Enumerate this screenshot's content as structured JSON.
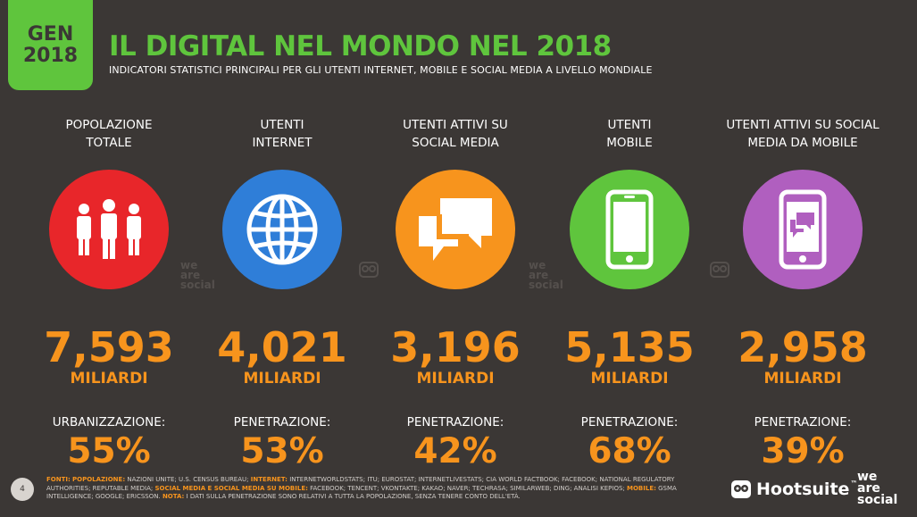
{
  "badge": {
    "line1": "GEN",
    "line2": "2018"
  },
  "header": {
    "title": "IL DIGITAL NEL MONDO NEL 2018",
    "subtitle": "INDICATORI STATISTICI PRINCIPALI PER GLI UTENTI INTERNET, MOBILE E SOCIAL MEDIA A LIVELLO MONDIALE"
  },
  "unit_label": "MILIARDI",
  "columns": [
    {
      "label": "POPOLAZIONE\nTOTALE",
      "icon": "people-icon",
      "color": "#e8262a",
      "value": "7,593",
      "pen_label": "URBANIZZAZIONE:",
      "pen_value": "55%"
    },
    {
      "label": "UTENTI\nINTERNET",
      "icon": "globe-icon",
      "color": "#2f7ed8",
      "value": "4,021",
      "pen_label": "PENETRAZIONE:",
      "pen_value": "53%"
    },
    {
      "label": "UTENTI ATTIVI SU\nSOCIAL MEDIA",
      "icon": "chat-bubbles-icon",
      "color": "#f7941d",
      "value": "3,196",
      "pen_label": "PENETRAZIONE:",
      "pen_value": "42%"
    },
    {
      "label": "UTENTI\nMOBILE",
      "icon": "smartphone-icon",
      "color": "#5fc53d",
      "value": "5,135",
      "pen_label": "PENETRAZIONE:",
      "pen_value": "68%"
    },
    {
      "label": "UTENTI ATTIVI SU SOCIAL\nMEDIA DA MOBILE",
      "icon": "smartphone-chat-icon",
      "color": "#b05fbf",
      "value": "2,958",
      "pen_label": "PENETRAZIONE:",
      "pen_value": "39%"
    }
  ],
  "watermark": "we\nare\nsocial",
  "footer": {
    "page_number": "4",
    "src_fonti": "FONTI:",
    "src_pop": "POPOLAZIONE:",
    "src_pop_text": " NAZIONI UNITE; U.S. CENSUS BUREAU; ",
    "src_internet": "INTERNET:",
    "src_internet_text": " INTERNETWORLDSTATS; ITU; EUROSTAT; INTERNETLIVESTATS; CIA WORLD FACTBOOK; FACEBOOK; NATIONAL REGULATORY AUTHORITIES; REPUTABLE MEDIA; ",
    "src_social": "SOCIAL MEDIA E SOCIAL MEDIA SU MOBILE:",
    "src_social_text": " FACEBOOK; TENCENT; VKONTAKTE; KAKAO; NAVER; TECHRASA; SIMILARWEB; DING; ANALISI KEPIOS; ",
    "src_mobile": "MOBILE:",
    "src_mobile_text": " GSMA INTELLIGENCE; GOOGLE; ERICSSON. ",
    "src_nota": "NOTA:",
    "src_nota_text": " I DATI SULLA PENETRAZIONE SONO RELATIVI A TUTTA LA POPOLAZIONE, SENZA TENERE CONTO DELL'ETÀ.",
    "hootsuite": "Hootsuite",
    "tm": "™",
    "was_logo": "we\nare\nsocial"
  }
}
